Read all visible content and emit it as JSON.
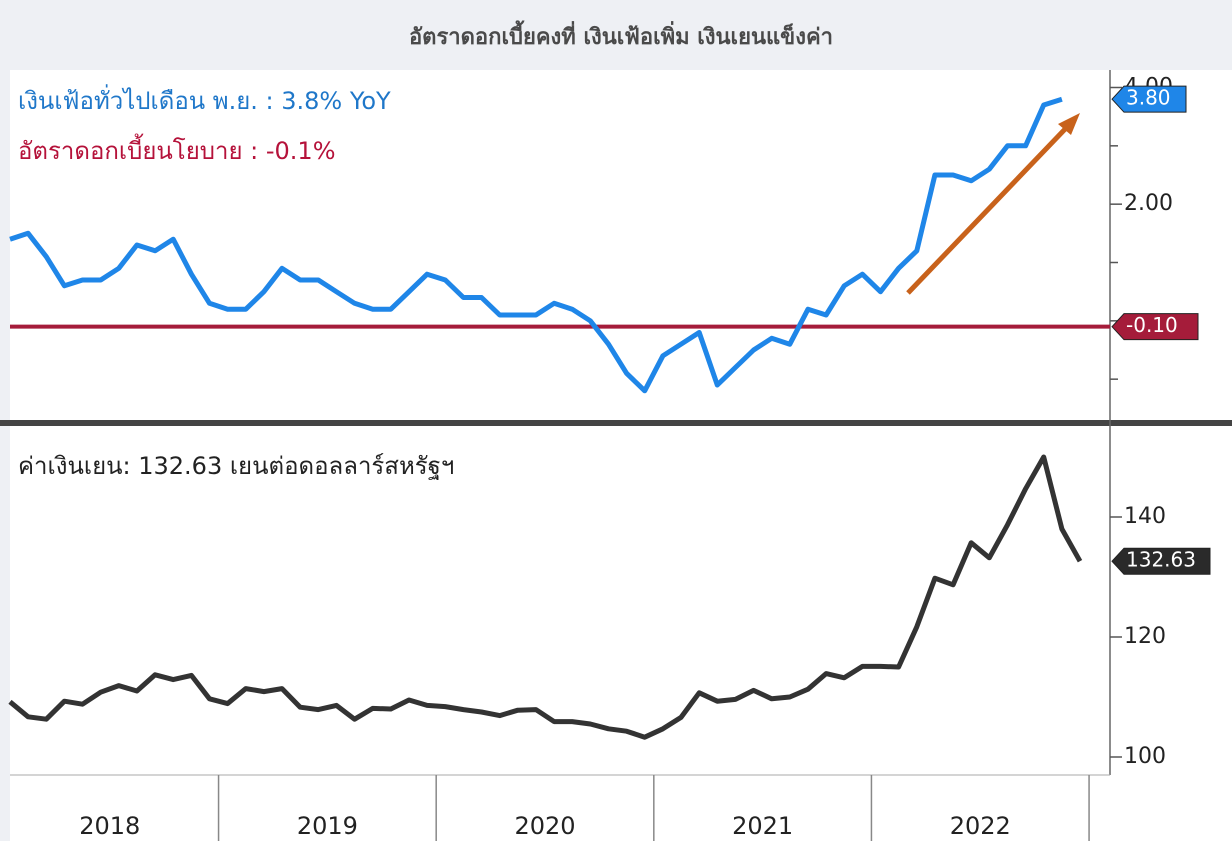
{
  "chart_data": [
    {
      "type": "line",
      "title": "อัตราดอกเบี้ยคงที่  เงินเฟ้อเพิ่ม เงินเยนแข็งค่า",
      "annotations": [
        {
          "text": "เงินเฟ้อทั่วไปเดือน พ.ย. : 3.8% YoY",
          "color": "#1f77c9"
        },
        {
          "text": "อัตราดอกเบี้ยนโยบาย   : -0.1%",
          "color": "#b5123a"
        }
      ],
      "categories": [
        null,
        null,
        null,
        null,
        null,
        null,
        null,
        null,
        null,
        null,
        null,
        null,
        null,
        null,
        null,
        null,
        null,
        null,
        null,
        null,
        null,
        null,
        null,
        null,
        null,
        null,
        null,
        null,
        null,
        null,
        null,
        null,
        null,
        null,
        null,
        null,
        null,
        null,
        null,
        null,
        null,
        null,
        null,
        null,
        null,
        null,
        null,
        null,
        null,
        null,
        null,
        null,
        null,
        null,
        null,
        null,
        null,
        null,
        null,
        null
      ],
      "series": [
        {
          "color": "#1f86e8",
          "values": [
            1.4,
            1.5,
            1.1,
            0.6,
            0.7,
            0.7,
            0.9,
            1.3,
            1.2,
            1.4,
            0.8,
            0.3,
            0.2,
            0.2,
            0.5,
            0.9,
            0.7,
            0.7,
            0.5,
            0.3,
            0.2,
            0.2,
            0.5,
            0.8,
            0.7,
            0.4,
            0.4,
            0.1,
            0.1,
            0.1,
            0.3,
            0.2,
            0.0,
            -0.4,
            -0.9,
            -1.2,
            -0.6,
            -0.4,
            -0.2,
            -1.1,
            -0.8,
            -0.5,
            -0.3,
            -0.4,
            0.2,
            0.1,
            0.6,
            0.8,
            0.5,
            0.9,
            1.2,
            2.5,
            2.5,
            2.4,
            2.6,
            3.0,
            3.0,
            3.7,
            3.8,
            null
          ],
          "value_labels": [
            null,
            null,
            null,
            null,
            null,
            null,
            null,
            null,
            null,
            null,
            null,
            null,
            null,
            null,
            null,
            null,
            null,
            null,
            null,
            null,
            null,
            null,
            null,
            null,
            null,
            null,
            null,
            null,
            null,
            null,
            null,
            null,
            null,
            null,
            null,
            null,
            null,
            null,
            null,
            null,
            null,
            null,
            null,
            null,
            null,
            null,
            null,
            null,
            null,
            null,
            null,
            null,
            null,
            null,
            null,
            null,
            null,
            null,
            "3.80",
            null
          ]
        }
      ],
      "hlines": [
        {
          "value": -0.1,
          "label": "-0.10",
          "color": "#a51c3a"
        }
      ],
      "ylim": [
        -1.7,
        4.3
      ],
      "yticks": [
        {
          "value": 2,
          "label": "2.00"
        },
        {
          "value": 4,
          "label": "4.00"
        }
      ],
      "yminorticks": [
        -1,
        0,
        1,
        3
      ]
    },
    {
      "type": "line",
      "annotations": [
        {
          "text": "ค่าเงินเยน: 132.63 เยนต่อดอลลาร์สหรัฐฯ",
          "color": "#222222"
        }
      ],
      "categories": [
        null,
        null,
        null,
        null,
        null,
        null,
        null,
        null,
        null,
        null,
        null,
        null,
        null,
        null,
        null,
        null,
        null,
        null,
        null,
        null,
        null,
        null,
        null,
        null,
        null,
        null,
        null,
        null,
        null,
        null,
        null,
        null,
        null,
        null,
        null,
        null,
        null,
        null,
        null,
        null,
        null,
        null,
        null,
        null,
        null,
        null,
        null,
        null,
        null,
        null,
        null,
        null,
        null,
        null,
        null,
        null,
        null,
        null,
        null,
        null
      ],
      "series": [
        {
          "color": "#333333",
          "values": [
            109.2,
            106.7,
            106.3,
            109.3,
            108.8,
            110.8,
            111.9,
            111.0,
            113.7,
            112.9,
            113.6,
            109.7,
            108.9,
            111.4,
            110.9,
            111.4,
            108.3,
            107.9,
            108.6,
            106.3,
            108.1,
            108.0,
            109.5,
            108.6,
            108.4,
            107.9,
            107.5,
            106.9,
            107.8,
            107.9,
            105.9,
            105.9,
            105.5,
            104.7,
            104.3,
            103.3,
            104.7,
            106.6,
            110.7,
            109.3,
            109.6,
            111.1,
            109.7,
            110.0,
            111.3,
            113.9,
            113.2,
            115.1,
            115.1,
            115.0,
            121.7,
            129.8,
            128.7,
            135.7,
            133.2,
            138.7,
            144.7,
            150.0,
            138.0,
            132.63
          ],
          "value_labels": [
            null,
            null,
            null,
            null,
            null,
            null,
            null,
            null,
            null,
            null,
            null,
            null,
            null,
            null,
            null,
            null,
            null,
            null,
            null,
            null,
            null,
            null,
            null,
            null,
            null,
            null,
            null,
            null,
            null,
            null,
            null,
            null,
            null,
            null,
            null,
            null,
            null,
            null,
            null,
            null,
            null,
            null,
            null,
            null,
            null,
            null,
            null,
            null,
            null,
            null,
            null,
            null,
            null,
            null,
            null,
            null,
            null,
            null,
            null,
            "132.63"
          ]
        }
      ],
      "ylim": [
        97,
        154.5
      ],
      "yticks": [
        100,
        120,
        140
      ],
      "x_labels": [
        "2018",
        "2019",
        "2020",
        "2021",
        "2022"
      ]
    }
  ]
}
